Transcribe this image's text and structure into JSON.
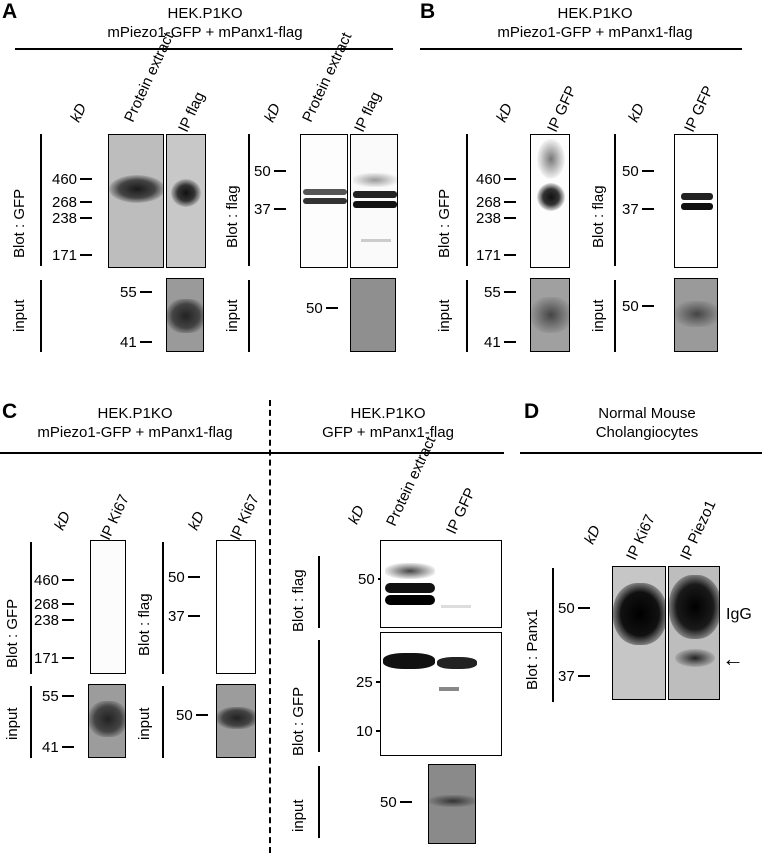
{
  "panels": {
    "A": {
      "letter": "A",
      "header_line1": "HEK.P1KO",
      "header_line2": "mPiezo1-GFP + mPanx1-flag",
      "gfp": {
        "kd": "kD",
        "lanes": [
          "Protein extract",
          "IP flag"
        ],
        "blot_label": "Blot : GFP",
        "markers": [
          "460",
          "268",
          "238",
          "171"
        ],
        "input_label": "input",
        "input_markers": [
          "55",
          "41"
        ]
      },
      "flag": {
        "kd": "kD",
        "lanes": [
          "Protein extract",
          "IP flag"
        ],
        "blot_label": "Blot : flag",
        "markers": [
          "50",
          "37"
        ],
        "input_label": "input",
        "input_markers": [
          "50"
        ]
      }
    },
    "B": {
      "letter": "B",
      "header_line1": "HEK.P1KO",
      "header_line2": "mPiezo1-GFP + mPanx1-flag",
      "gfp": {
        "kd": "kD",
        "lanes": [
          "IP GFP"
        ],
        "blot_label": "Blot : GFP",
        "markers": [
          "460",
          "268",
          "238",
          "171"
        ],
        "input_label": "input",
        "input_markers": [
          "55",
          "41"
        ]
      },
      "flag": {
        "kd": "kD",
        "lanes": [
          "IP GFP"
        ],
        "blot_label": "Blot : flag",
        "markers": [
          "50",
          "37"
        ],
        "input_label": "input",
        "input_markers": [
          "50"
        ]
      }
    },
    "C": {
      "letter": "C",
      "left_header_line1": "HEK.P1KO",
      "left_header_line2": "mPiezo1-GFP + mPanx1-flag",
      "right_header_line1": "HEK.P1KO",
      "right_header_line2": "GFP + mPanx1-flag",
      "gfp": {
        "kd": "kD",
        "lanes": [
          "IP Ki67"
        ],
        "blot_label": "Blot : GFP",
        "markers": [
          "460",
          "268",
          "238",
          "171"
        ],
        "input_label": "input",
        "input_markers": [
          "55",
          "41"
        ]
      },
      "flag": {
        "kd": "kD",
        "lanes": [
          "IP Ki67"
        ],
        "blot_label": "Blot : flag",
        "markers": [
          "50",
          "37"
        ],
        "input_label": "input",
        "input_markers": [
          "50"
        ]
      },
      "right": {
        "kd": "kD",
        "lanes": [
          "Protein extract",
          "IP GFP"
        ],
        "flag_label": "Blot : flag",
        "flag_markers": [
          "50"
        ],
        "gfp_label": "Blot : GFP",
        "gfp_markers": [
          "25",
          "10"
        ],
        "input_label": "input",
        "input_markers": [
          "50"
        ]
      }
    },
    "D": {
      "letter": "D",
      "header_line1": "Normal Mouse",
      "header_line2": "Cholangiocytes",
      "kd": "kD",
      "lanes": [
        "IP Ki67",
        "IP Piezo1"
      ],
      "blot_label": "Blot : Panx1",
      "markers": [
        "50",
        "37"
      ],
      "igg_label": "IgG",
      "arrow": "←"
    }
  }
}
